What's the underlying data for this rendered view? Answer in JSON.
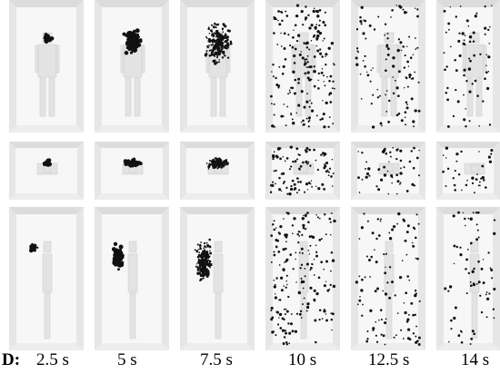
{
  "row_label": "D:",
  "times": [
    "2.5 s",
    "5 s",
    "7.5 s",
    "10 s",
    "12.5 s",
    "14 s"
  ],
  "views": [
    "front",
    "top",
    "side"
  ],
  "colors": {
    "background": "#ffffff",
    "room": "#ededed",
    "floor": "#f7f7f7",
    "manikin": "#e3e3e3",
    "particles": "#111111"
  }
}
